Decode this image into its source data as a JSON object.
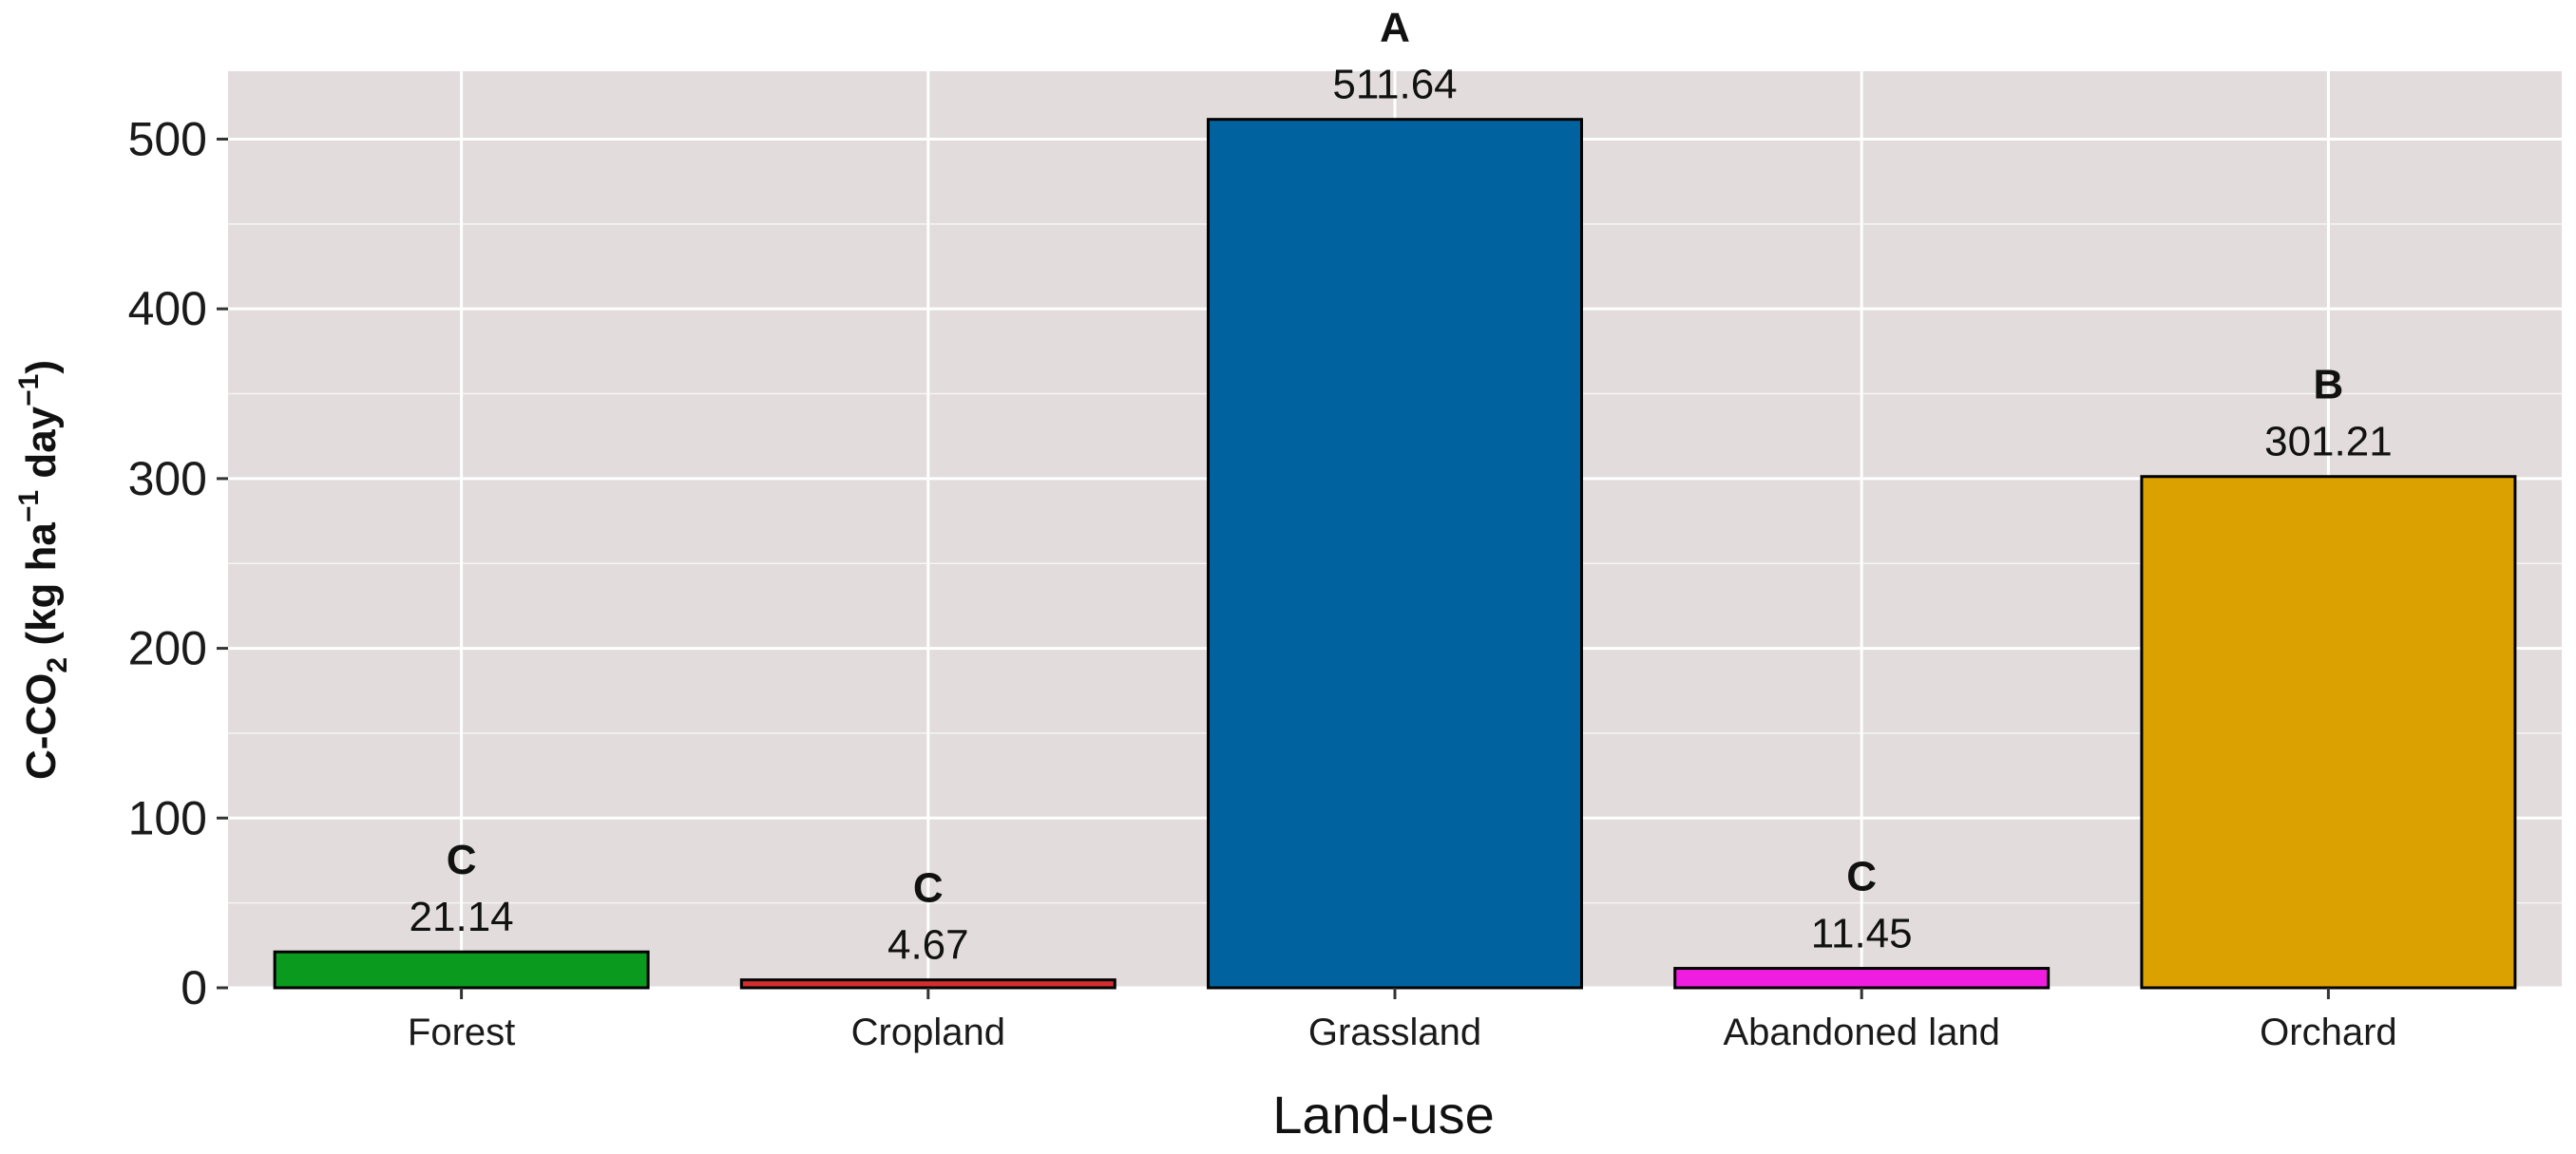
{
  "chart_data": {
    "type": "bar",
    "categories": [
      "Forest",
      "Cropland",
      "Grassland",
      "Abandoned land",
      "Orchard"
    ],
    "values": [
      21.14,
      4.67,
      511.64,
      11.45,
      301.21
    ],
    "value_labels": [
      "21.14",
      "4.67",
      "511.64",
      "11.45",
      "301.21"
    ],
    "group_letters": [
      "C",
      "C",
      "A",
      "C",
      "B"
    ],
    "colors": [
      "#0a9a1e",
      "#d42e2e",
      "#00639f",
      "#ee1de0",
      "#dba100"
    ],
    "xlabel": "Land-use",
    "ylabel": {
      "prefix": "C-CO",
      "sub": "2",
      "mid": " (kg ha",
      "sup1": "−1",
      "mid2": " day",
      "sup2": "−1",
      "suffix": ")"
    },
    "ylim": [
      0,
      540
    ],
    "yticks": [
      0,
      100,
      200,
      300,
      400,
      500
    ],
    "grid": true,
    "panel_background": "#e2dcdc",
    "grid_color": "#ffffff",
    "bar_outline": "#000000"
  }
}
